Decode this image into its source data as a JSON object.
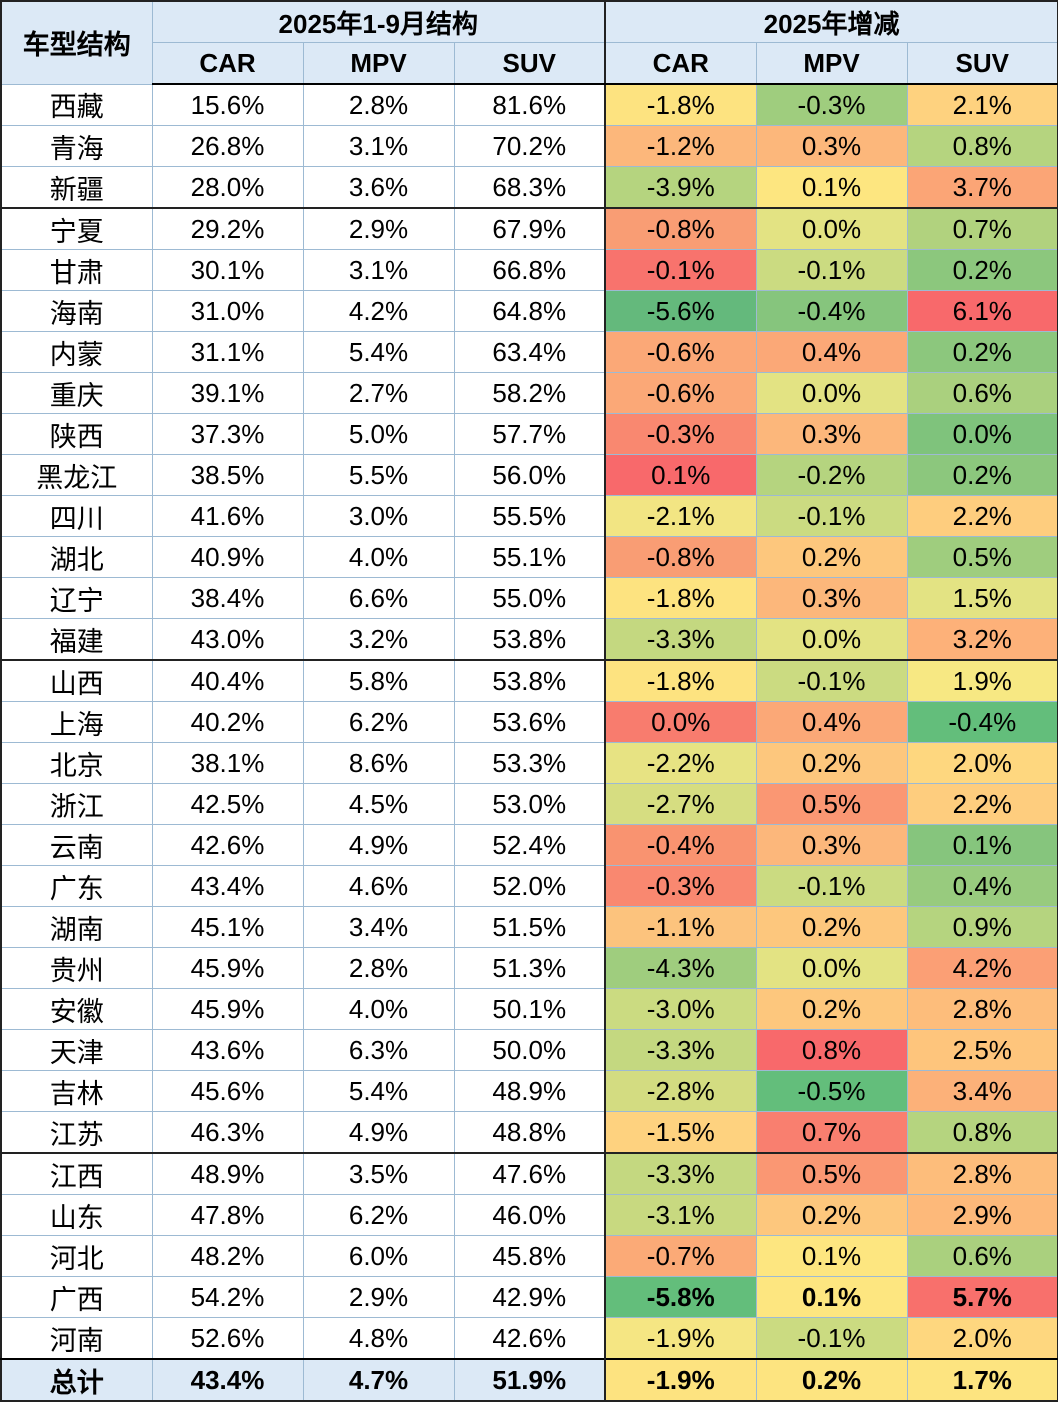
{
  "header": {
    "corner": "车型结构",
    "group_structure": "2025年1-9月结构",
    "group_change": "2025年增减",
    "columns": [
      "CAR",
      "MPV",
      "SUV",
      "CAR",
      "MPV",
      "SUV"
    ]
  },
  "rows": [
    {
      "prov": "西藏",
      "s": [
        "15.6%",
        "2.8%",
        "81.6%"
      ],
      "d": [
        "-1.8%",
        "-0.3%",
        "2.1%"
      ]
    },
    {
      "prov": "青海",
      "s": [
        "26.8%",
        "3.1%",
        "70.2%"
      ],
      "d": [
        "-1.2%",
        "0.3%",
        "0.8%"
      ]
    },
    {
      "prov": "新疆",
      "s": [
        "28.0%",
        "3.6%",
        "68.3%"
      ],
      "d": [
        "-3.9%",
        "0.1%",
        "3.7%"
      ]
    },
    {
      "prov": "宁夏",
      "s": [
        "29.2%",
        "2.9%",
        "67.9%"
      ],
      "d": [
        "-0.8%",
        "0.0%",
        "0.7%"
      ]
    },
    {
      "prov": "甘肃",
      "s": [
        "30.1%",
        "3.1%",
        "66.8%"
      ],
      "d": [
        "-0.1%",
        "-0.1%",
        "0.2%"
      ]
    },
    {
      "prov": "海南",
      "s": [
        "31.0%",
        "4.2%",
        "64.8%"
      ],
      "d": [
        "-5.6%",
        "-0.4%",
        "6.1%"
      ]
    },
    {
      "prov": "内蒙",
      "s": [
        "31.1%",
        "5.4%",
        "63.4%"
      ],
      "d": [
        "-0.6%",
        "0.4%",
        "0.2%"
      ]
    },
    {
      "prov": "重庆",
      "s": [
        "39.1%",
        "2.7%",
        "58.2%"
      ],
      "d": [
        "-0.6%",
        "0.0%",
        "0.6%"
      ]
    },
    {
      "prov": "陕西",
      "s": [
        "37.3%",
        "5.0%",
        "57.7%"
      ],
      "d": [
        "-0.3%",
        "0.3%",
        "0.0%"
      ]
    },
    {
      "prov": "黑龙江",
      "s": [
        "38.5%",
        "5.5%",
        "56.0%"
      ],
      "d": [
        "0.1%",
        "-0.2%",
        "0.2%"
      ]
    },
    {
      "prov": "四川",
      "s": [
        "41.6%",
        "3.0%",
        "55.5%"
      ],
      "d": [
        "-2.1%",
        "-0.1%",
        "2.2%"
      ]
    },
    {
      "prov": "湖北",
      "s": [
        "40.9%",
        "4.0%",
        "55.1%"
      ],
      "d": [
        "-0.8%",
        "0.2%",
        "0.5%"
      ]
    },
    {
      "prov": "辽宁",
      "s": [
        "38.4%",
        "6.6%",
        "55.0%"
      ],
      "d": [
        "-1.8%",
        "0.3%",
        "1.5%"
      ]
    },
    {
      "prov": "福建",
      "s": [
        "43.0%",
        "3.2%",
        "53.8%"
      ],
      "d": [
        "-3.3%",
        "0.0%",
        "3.2%"
      ]
    },
    {
      "prov": "山西",
      "s": [
        "40.4%",
        "5.8%",
        "53.8%"
      ],
      "d": [
        "-1.8%",
        "-0.1%",
        "1.9%"
      ]
    },
    {
      "prov": "上海",
      "s": [
        "40.2%",
        "6.2%",
        "53.6%"
      ],
      "d": [
        "0.0%",
        "0.4%",
        "-0.4%"
      ]
    },
    {
      "prov": "北京",
      "s": [
        "38.1%",
        "8.6%",
        "53.3%"
      ],
      "d": [
        "-2.2%",
        "0.2%",
        "2.0%"
      ]
    },
    {
      "prov": "浙江",
      "s": [
        "42.5%",
        "4.5%",
        "53.0%"
      ],
      "d": [
        "-2.7%",
        "0.5%",
        "2.2%"
      ]
    },
    {
      "prov": "云南",
      "s": [
        "42.6%",
        "4.9%",
        "52.4%"
      ],
      "d": [
        "-0.4%",
        "0.3%",
        "0.1%"
      ]
    },
    {
      "prov": "广东",
      "s": [
        "43.4%",
        "4.6%",
        "52.0%"
      ],
      "d": [
        "-0.3%",
        "-0.1%",
        "0.4%"
      ]
    },
    {
      "prov": "湖南",
      "s": [
        "45.1%",
        "3.4%",
        "51.5%"
      ],
      "d": [
        "-1.1%",
        "0.2%",
        "0.9%"
      ]
    },
    {
      "prov": "贵州",
      "s": [
        "45.9%",
        "2.8%",
        "51.3%"
      ],
      "d": [
        "-4.3%",
        "0.0%",
        "4.2%"
      ]
    },
    {
      "prov": "安徽",
      "s": [
        "45.9%",
        "4.0%",
        "50.1%"
      ],
      "d": [
        "-3.0%",
        "0.2%",
        "2.8%"
      ]
    },
    {
      "prov": "天津",
      "s": [
        "43.6%",
        "6.3%",
        "50.0%"
      ],
      "d": [
        "-3.3%",
        "0.8%",
        "2.5%"
      ]
    },
    {
      "prov": "吉林",
      "s": [
        "45.6%",
        "5.4%",
        "48.9%"
      ],
      "d": [
        "-2.8%",
        "-0.5%",
        "3.4%"
      ]
    },
    {
      "prov": "江苏",
      "s": [
        "46.3%",
        "4.9%",
        "48.8%"
      ],
      "d": [
        "-1.5%",
        "0.7%",
        "0.8%"
      ]
    },
    {
      "prov": "江西",
      "s": [
        "48.9%",
        "3.5%",
        "47.6%"
      ],
      "d": [
        "-3.3%",
        "0.5%",
        "2.8%"
      ]
    },
    {
      "prov": "山东",
      "s": [
        "47.8%",
        "6.2%",
        "46.0%"
      ],
      "d": [
        "-3.1%",
        "0.2%",
        "2.9%"
      ]
    },
    {
      "prov": "河北",
      "s": [
        "48.2%",
        "6.0%",
        "45.8%"
      ],
      "d": [
        "-0.7%",
        "0.1%",
        "0.6%"
      ]
    },
    {
      "prov": "广西",
      "s": [
        "54.2%",
        "2.9%",
        "42.9%"
      ],
      "d": [
        "-5.8%",
        "0.1%",
        "5.7%"
      ]
    },
    {
      "prov": "河南",
      "s": [
        "52.6%",
        "4.8%",
        "42.6%"
      ],
      "d": [
        "-1.9%",
        "-0.1%",
        "2.0%"
      ]
    }
  ],
  "total": {
    "prov": "总计",
    "s": [
      "43.4%",
      "4.7%",
      "51.9%"
    ],
    "d": [
      "-1.9%",
      "0.2%",
      "1.7%"
    ]
  },
  "bold_rows": [
    "广西"
  ],
  "separator_rows": [
    "宁夏",
    "山西",
    "江西"
  ],
  "heat_colors": {
    "CAR": [
      "#fde380",
      "#fcb77b",
      "#b5d47f",
      "#f99d74",
      "#f8736d",
      "#64b97c",
      "#fba877",
      "#fba877",
      "#f98870",
      "#f8696b",
      "#f2e583",
      "#f99d74",
      "#fde380",
      "#c4d880",
      "#fde380",
      "#f87c6e",
      "#e7e383",
      "#d6dd81",
      "#f99370",
      "#f98870",
      "#fcc37d",
      "#9fcd7e",
      "#cbdb81",
      "#c4d880",
      "#d3dc81",
      "#fed27f",
      "#c4d880",
      "#c8d980",
      "#fbaa77",
      "#63be7b",
      "#f5e683"
    ],
    "MPV": [
      "#9fcd7e",
      "#fcb77b",
      "#fde680",
      "#e3e383",
      "#cbdb81",
      "#86c57d",
      "#fba877",
      "#e3e383",
      "#fcb77b",
      "#b5d47f",
      "#cbdb81",
      "#fdc77d",
      "#fcb77b",
      "#e3e383",
      "#cbdb81",
      "#fba877",
      "#fdc77d",
      "#fa9773",
      "#fcb77b",
      "#cbdb81",
      "#fdc77d",
      "#e3e383",
      "#fdc77d",
      "#f8696b",
      "#63be7b",
      "#f97f6f",
      "#fa9773",
      "#fdc77d",
      "#fde680",
      "#fde680",
      "#cbdb81"
    ],
    "SUV": [
      "#fed27f",
      "#b5d47f",
      "#fba576",
      "#b1d27e",
      "#8cc77d",
      "#f8696b",
      "#8cc77d",
      "#aad07e",
      "#7fc37c",
      "#8cc77d",
      "#fecd7e",
      "#9fcd7e",
      "#e3e383",
      "#fdb179",
      "#f7e883",
      "#63be7b",
      "#fed77f",
      "#fecd7e",
      "#86c57d",
      "#98cb7e",
      "#b5d47f",
      "#fb9f75",
      "#fdbd7b",
      "#fec57c",
      "#fcb179",
      "#b5d47f",
      "#fdbd7b",
      "#fdb97a",
      "#aad07e",
      "#f8706c",
      "#fed77f"
    ]
  },
  "total_colors": [
    "#fde380",
    "#fde480",
    "#fde480"
  ]
}
